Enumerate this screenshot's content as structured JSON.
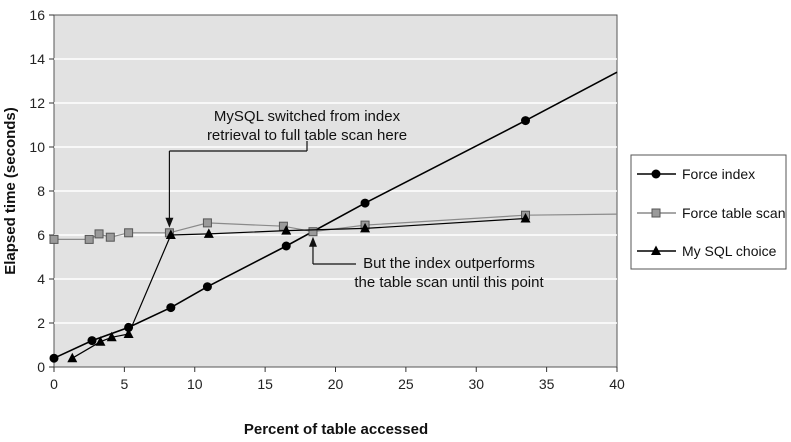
{
  "chart_data": {
    "type": "line",
    "title": "",
    "xlabel": "Percent of table accessed",
    "ylabel": "Elapsed time (seconds)",
    "xlim": [
      0,
      40
    ],
    "ylim": [
      0,
      16
    ],
    "xticks": [
      0,
      5,
      10,
      15,
      20,
      25,
      30,
      35,
      40
    ],
    "yticks": [
      0,
      2,
      4,
      6,
      8,
      10,
      12,
      14,
      16
    ],
    "grid": "horizontal",
    "legend": "right",
    "series": [
      {
        "name": "Force index",
        "marker": "circle",
        "color": "#000000",
        "x": [
          0,
          2.7,
          5.3,
          8.3,
          10.9,
          16.5,
          22.1,
          33.5,
          40
        ],
        "y": [
          0.4,
          1.2,
          1.8,
          2.7,
          3.65,
          5.5,
          7.45,
          11.2,
          13.4
        ]
      },
      {
        "name": "Force table scan",
        "marker": "square",
        "color": "#8a8a8a",
        "x": [
          0,
          2.5,
          3.2,
          4,
          5.3,
          8.2,
          10.9,
          16.3,
          18.4,
          22.1,
          33.5,
          40
        ],
        "y": [
          5.8,
          5.8,
          6.05,
          5.9,
          6.1,
          6.1,
          6.55,
          6.4,
          6.15,
          6.45,
          6.9,
          6.95
        ]
      },
      {
        "name": "My SQL choice",
        "marker": "triangle",
        "color": "#000000",
        "x": [
          1.3,
          3.3,
          4.1,
          5.3,
          8.3,
          11,
          16.5,
          22.1,
          33.5
        ],
        "y": [
          0.4,
          1.15,
          1.35,
          1.5,
          6,
          6.05,
          6.2,
          6.3,
          6.75
        ]
      }
    ],
    "annotations": [
      {
        "lines": [
          "MySQL switched from index",
          "retrieval to full table scan here"
        ],
        "target": [
          8.2,
          6.1
        ]
      },
      {
        "lines": [
          "But the index outperforms",
          "the table scan until this point"
        ],
        "target": [
          18.4,
          6.15
        ]
      }
    ]
  }
}
